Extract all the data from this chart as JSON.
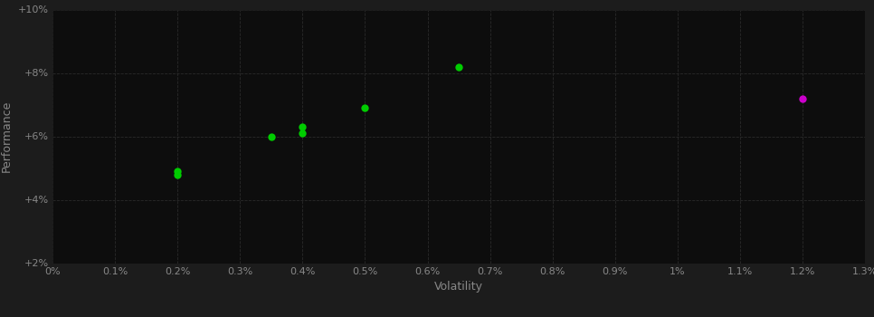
{
  "background_color": "#1c1c1c",
  "plot_bg_color": "#0d0d0d",
  "grid_color": "#2a2a2a",
  "grid_style": "--",
  "xlabel": "Volatility",
  "ylabel": "Performance",
  "xlabel_color": "#888888",
  "ylabel_color": "#888888",
  "tick_color": "#888888",
  "xlim": [
    0.0,
    0.013
  ],
  "ylim": [
    0.02,
    0.1
  ],
  "xticks": [
    0.0,
    0.001,
    0.002,
    0.003,
    0.004,
    0.005,
    0.006,
    0.007,
    0.008,
    0.009,
    0.01,
    0.011,
    0.012,
    0.013
  ],
  "yticks": [
    0.02,
    0.04,
    0.06,
    0.08,
    0.1
  ],
  "xtick_labels": [
    "0%",
    "0.1%",
    "0.2%",
    "0.3%",
    "0.4%",
    "0.5%",
    "0.6%",
    "0.7%",
    "0.8%",
    "0.9%",
    "1%",
    "1.1%",
    "1.2%",
    "1.3%"
  ],
  "ytick_labels": [
    "+2%",
    "+4%",
    "+6%",
    "+8%",
    "+10%"
  ],
  "points_green": [
    [
      0.002,
      0.048
    ],
    [
      0.002,
      0.049
    ],
    [
      0.0035,
      0.06
    ],
    [
      0.004,
      0.063
    ],
    [
      0.004,
      0.061
    ],
    [
      0.005,
      0.069
    ],
    [
      0.0065,
      0.082
    ]
  ],
  "points_magenta": [
    [
      0.012,
      0.072
    ]
  ],
  "green_color": "#00cc00",
  "magenta_color": "#cc00cc",
  "marker_size": 6,
  "marker": "o"
}
